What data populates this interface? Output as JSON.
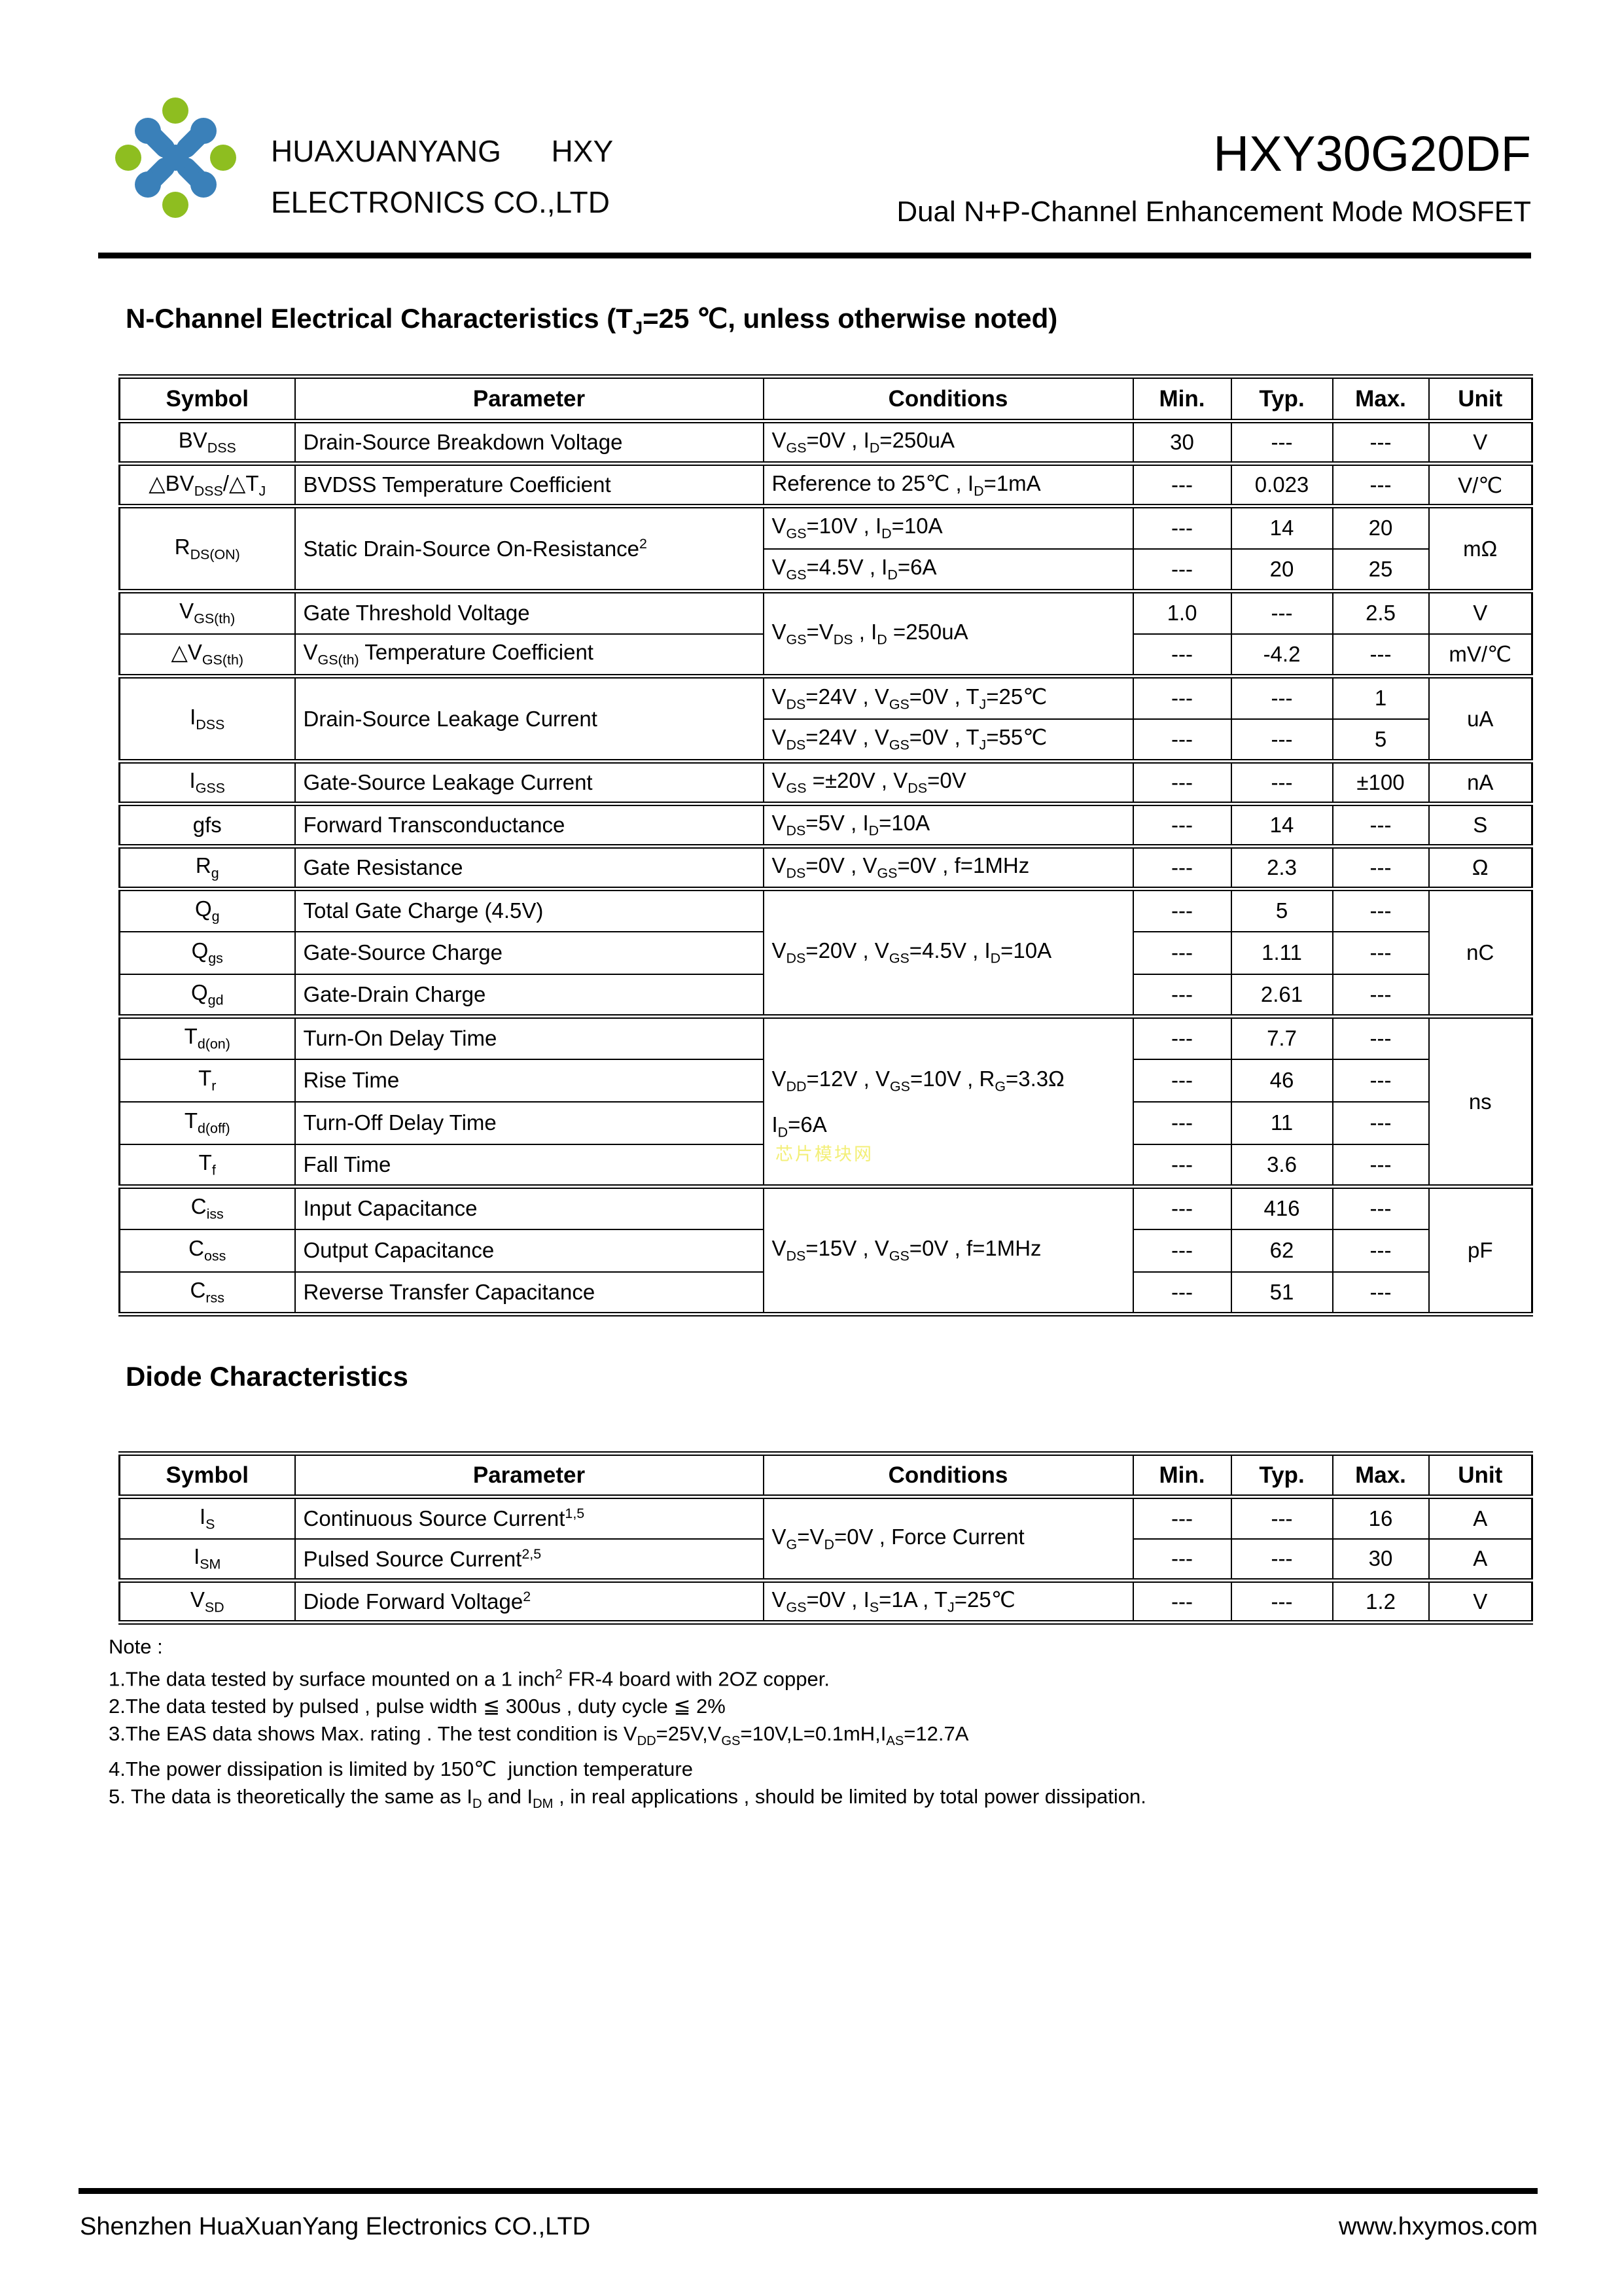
{
  "header": {
    "company_line1": "HUAXUANYANG      HXY",
    "company_line2": "ELECTRONICS CO.,LTD",
    "part_number": "HXY30G20DF",
    "subtitle": "Dual N+P-Channel Enhancement Mode MOSFET"
  },
  "colors": {
    "logo_green": "#8ebe20",
    "logo_blue": "#3a80b9",
    "watermark_yellow": "#f3ef78",
    "rule_black": "#000000"
  },
  "watermark_text": "芯片模块网",
  "nch": {
    "title_html": "N-Channel Electrical Characteristics (T<sub>J</sub>=25 ℃, unless otherwise noted)",
    "columns": [
      "Symbol",
      "Parameter",
      "Conditions",
      "Min.",
      "Typ.",
      "Max.",
      "Unit"
    ],
    "rows": [
      {
        "sym": "BV<sub>DSS</sub>",
        "par": "Drain-Source Breakdown Voltage",
        "cond": "V<sub>GS</sub>=0V , I<sub>D</sub>=250uA",
        "min": "30",
        "typ": "---",
        "max": "---",
        "unit": "V"
      },
      {
        "sym": "△BV<sub>DSS</sub>/△T<sub>J</sub>",
        "par": "BVDSS Temperature Coefficient",
        "cond": "Reference to 25℃ , I<sub>D</sub>=1mA",
        "min": "---",
        "typ": "0.023",
        "max": "---",
        "unit": "V/℃"
      },
      {
        "sym": "R<sub>DS(ON)</sub>",
        "par": "Static Drain-Source On-Resistance<sup>2</sup>",
        "cond": "V<sub>GS</sub>=10V , I<sub>D</sub>=10A",
        "min": "---",
        "typ": "14",
        "max": "20",
        "unit": "mΩ"
      },
      {
        "cond": "V<sub>GS</sub>=4.5V , I<sub>D</sub>=6A",
        "min": "---",
        "typ": "20",
        "max": "25"
      },
      {
        "sym": "V<sub>GS(th)</sub>",
        "par": "Gate Threshold Voltage",
        "cond": "V<sub>GS</sub>=V<sub>DS</sub> , I<sub>D</sub> =250uA",
        "min": "1.0",
        "typ": "---",
        "max": "2.5",
        "unit": "V"
      },
      {
        "sym": "△V<sub>GS(th)</sub>",
        "par": "V<sub>GS(th)</sub> Temperature Coefficient",
        "min": "---",
        "typ": "-4.2",
        "max": "---",
        "unit": "mV/℃"
      },
      {
        "sym": "I<sub>DSS</sub>",
        "par": "Drain-Source Leakage Current",
        "cond": "V<sub>DS</sub>=24V , V<sub>GS</sub>=0V , T<sub>J</sub>=25℃",
        "min": "---",
        "typ": "---",
        "max": "1",
        "unit": "uA"
      },
      {
        "cond": "V<sub>DS</sub>=24V , V<sub>GS</sub>=0V , T<sub>J</sub>=55℃",
        "min": "---",
        "typ": "---",
        "max": "5"
      },
      {
        "sym": "I<sub>GSS</sub>",
        "par": "Gate-Source Leakage Current",
        "cond": "V<sub>GS</sub> =±20V , V<sub>DS</sub>=0V",
        "min": "---",
        "typ": "---",
        "max": "±100",
        "unit": "nA"
      },
      {
        "sym": "gfs",
        "par": "Forward Transconductance",
        "cond": "V<sub>DS</sub>=5V , I<sub>D</sub>=10A",
        "min": "---",
        "typ": "14",
        "max": "---",
        "unit": "S"
      },
      {
        "sym": "R<sub>g</sub>",
        "par": "Gate Resistance",
        "cond": "V<sub>DS</sub>=0V , V<sub>GS</sub>=0V , f=1MHz",
        "min": "---",
        "typ": "2.3",
        "max": "---",
        "unit": "Ω"
      },
      {
        "sym": "Q<sub>g</sub>",
        "par": "Total Gate Charge (4.5V)",
        "cond": "V<sub>DS</sub>=20V , V<sub>GS</sub>=4.5V , I<sub>D</sub>=10A",
        "min": "---",
        "typ": "5",
        "max": "---",
        "unit": "nC"
      },
      {
        "sym": "Q<sub>gs</sub>",
        "par": "Gate-Source Charge",
        "min": "---",
        "typ": "1.11",
        "max": "---"
      },
      {
        "sym": "Q<sub>gd</sub>",
        "par": "Gate-Drain Charge",
        "min": "---",
        "typ": "2.61",
        "max": "---"
      },
      {
        "sym": "T<sub>d(on)</sub>",
        "par": "Turn-On Delay Time",
        "cond": "V<sub>DD</sub>=12V , V<sub>GS</sub>=10V , R<sub>G</sub>=3.3Ω<br>I<sub>D</sub>=6A",
        "min": "---",
        "typ": "7.7",
        "max": "---",
        "unit": "ns"
      },
      {
        "sym": "T<sub>r</sub>",
        "par": "Rise Time",
        "min": "---",
        "typ": "46",
        "max": "---"
      },
      {
        "sym": "T<sub>d(off)</sub>",
        "par": "Turn-Off Delay Time",
        "min": "---",
        "typ": "11",
        "max": "---"
      },
      {
        "sym": "T<sub>f</sub>",
        "par": "Fall Time",
        "min": "---",
        "typ": "3.6",
        "max": "---"
      },
      {
        "sym": "C<sub>iss</sub>",
        "par": "Input Capacitance",
        "cond": "V<sub>DS</sub>=15V , V<sub>GS</sub>=0V , f=1MHz",
        "min": "---",
        "typ": "416",
        "max": "---",
        "unit": "pF"
      },
      {
        "sym": "C<sub>oss</sub>",
        "par": "Output Capacitance",
        "min": "---",
        "typ": "62",
        "max": "---"
      },
      {
        "sym": "C<sub>rss</sub>",
        "par": "Reverse Transfer Capacitance",
        "min": "---",
        "typ": "51",
        "max": "---"
      }
    ]
  },
  "diode": {
    "title": "Diode Characteristics",
    "columns": [
      "Symbol",
      "Parameter",
      "Conditions",
      "Min.",
      "Typ.",
      "Max.",
      "Unit"
    ],
    "rows": [
      {
        "sym": "I<sub>S</sub>",
        "par": "Continuous Source Current<sup>1,5</sup>",
        "cond": "V<sub>G</sub>=V<sub>D</sub>=0V , Force Current",
        "min": "---",
        "typ": "---",
        "max": "16",
        "unit": "A"
      },
      {
        "sym": "I<sub>SM</sub>",
        "par": "Pulsed Source Current<sup>2,5</sup>",
        "min": "---",
        "typ": "---",
        "max": "30",
        "unit": "A"
      },
      {
        "sym": "V<sub>SD</sub>",
        "par": "Diode Forward Voltage<sup>2</sup>",
        "cond": "V<sub>GS</sub>=0V , I<sub>S</sub>=1A , T<sub>J</sub>=25℃",
        "min": "---",
        "typ": "---",
        "max": "1.2",
        "unit": "V"
      }
    ]
  },
  "notes": {
    "label": "Note :",
    "lines": [
      "1.The data tested by surface mounted on a 1 inch<sup>2</sup> FR-4 board with 2OZ copper.",
      "2.The data tested by pulsed , pulse width ≦ 300us , duty cycle ≦ 2%",
      "3.The EAS data shows Max. rating . The test condition is V<sub>DD</sub>=25V,V<sub>GS</sub>=10V,L=0.1mH,I<sub>AS</sub>=12.7A",
      "4.The power dissipation is limited by 150℃  junction temperature",
      "5. The data is theoretically the same as I<sub>D</sub> and I<sub>DM</sub> , in real applications , should be limited by total power dissipation."
    ]
  },
  "footer": {
    "left": "Shenzhen HuaXuanYang Electronics CO.,LTD",
    "right": "www.hxymos.com"
  }
}
